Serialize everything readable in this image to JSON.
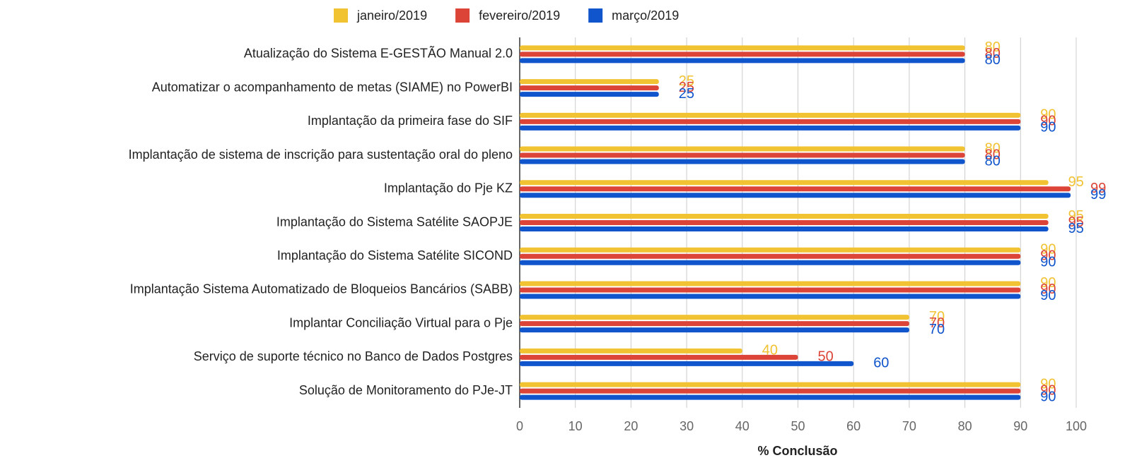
{
  "chart_data": {
    "type": "hbar",
    "categories": [
      "Atualização do Sistema E-GESTÃO Manual 2.0",
      "Automatizar o acompanhamento de metas (SIAME) no PowerBI",
      "Implantação da primeira fase do SIF",
      "Implantação de sistema de inscrição para sustentação oral do pleno",
      "Implantação do Pje KZ",
      "Implantação do Sistema Satélite SAOPJE",
      "Implantação do Sistema Satélite SICOND",
      "Implantação Sistema Automatizado de Bloqueios Bancários (SABB)",
      "Implantar Conciliação Virtual para o Pje",
      "Serviço de suporte técnico no Banco de Dados Postgres",
      "Solução de Monitoramento do PJe-JT"
    ],
    "series": [
      {
        "name": "janeiro/2019",
        "color": "#f1c232",
        "values": [
          80,
          25,
          90,
          80,
          95,
          95,
          90,
          90,
          70,
          40,
          90
        ]
      },
      {
        "name": "fevereiro/2019",
        "color": "#db4437",
        "values": [
          80,
          25,
          90,
          80,
          99,
          95,
          90,
          90,
          70,
          50,
          90
        ]
      },
      {
        "name": "março/2019",
        "color": "#1155cc",
        "values": [
          80,
          25,
          90,
          80,
          99,
          95,
          90,
          90,
          70,
          60,
          90
        ]
      }
    ],
    "xlabel": "% Conclusão",
    "xlim": [
      0,
      100
    ],
    "xticks": [
      0,
      10,
      20,
      30,
      40,
      50,
      60,
      70,
      80,
      90,
      100
    ],
    "grid": true,
    "legend": "top"
  }
}
